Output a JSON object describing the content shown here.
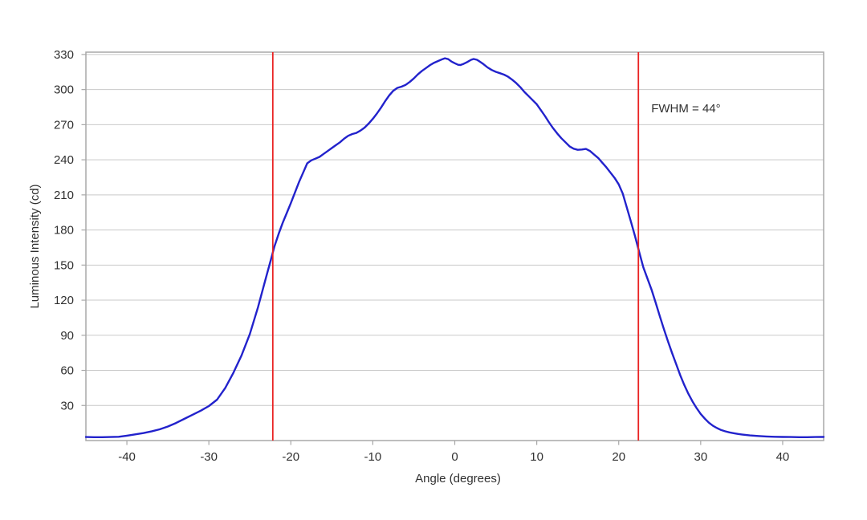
{
  "chart_data": {
    "type": "line",
    "title": "",
    "xlabel": "Angle (degrees)",
    "ylabel": "Luminous Intensity (cd)",
    "xlim": [
      -45,
      45
    ],
    "ylim": [
      0,
      332
    ],
    "x_ticks": [
      -40,
      -30,
      -20,
      -10,
      0,
      10,
      20,
      30,
      40
    ],
    "y_ticks": [
      30,
      60,
      90,
      120,
      150,
      180,
      210,
      240,
      270,
      300,
      330
    ],
    "grid": "horizontal-only",
    "legend": "none",
    "frame": "full-rectangle",
    "grid_color": "#c9c9c9",
    "frame_color": "#a8a8a8",
    "text_color": "#303030",
    "peak_cd": 327,
    "half_max_cd": 163.5,
    "series": [
      {
        "name": "luminous-intensity-vs-angle",
        "color": "#2222cc",
        "points": [
          [
            -45,
            3
          ],
          [
            -44,
            2.9
          ],
          [
            -43,
            2.9
          ],
          [
            -42,
            3
          ],
          [
            -41,
            3.2
          ],
          [
            -40,
            4.2
          ],
          [
            -39,
            5.3
          ],
          [
            -38,
            6.4
          ],
          [
            -37,
            7.8
          ],
          [
            -36,
            9.6
          ],
          [
            -35,
            12
          ],
          [
            -34,
            15
          ],
          [
            -33,
            18.5
          ],
          [
            -32,
            22
          ],
          [
            -31,
            25.5
          ],
          [
            -30,
            29.5
          ],
          [
            -29,
            35
          ],
          [
            -28,
            45
          ],
          [
            -27,
            58
          ],
          [
            -26,
            73
          ],
          [
            -25,
            91
          ],
          [
            -24,
            114
          ],
          [
            -23,
            140
          ],
          [
            -22.5,
            153
          ],
          [
            -22,
            166
          ],
          [
            -21.5,
            176.5
          ],
          [
            -21,
            186
          ],
          [
            -20.5,
            194.5
          ],
          [
            -20,
            203
          ],
          [
            -19.5,
            212
          ],
          [
            -19,
            221
          ],
          [
            -18.5,
            229
          ],
          [
            -18,
            237
          ],
          [
            -17.5,
            239.5
          ],
          [
            -17,
            241
          ],
          [
            -16.5,
            242.5
          ],
          [
            -16,
            245
          ],
          [
            -15.5,
            247.5
          ],
          [
            -15,
            250
          ],
          [
            -14.5,
            252.5
          ],
          [
            -14,
            255
          ],
          [
            -13.5,
            258
          ],
          [
            -13,
            260.5
          ],
          [
            -12.5,
            262
          ],
          [
            -12,
            263
          ],
          [
            -11.5,
            265
          ],
          [
            -11,
            267.5
          ],
          [
            -10.5,
            271
          ],
          [
            -10,
            275
          ],
          [
            -9.5,
            279.5
          ],
          [
            -9,
            284.5
          ],
          [
            -8.5,
            290
          ],
          [
            -8,
            295
          ],
          [
            -7.5,
            299
          ],
          [
            -7,
            301.5
          ],
          [
            -6.5,
            302.5
          ],
          [
            -6,
            304
          ],
          [
            -5.5,
            306.5
          ],
          [
            -5,
            309.5
          ],
          [
            -4.5,
            313
          ],
          [
            -4,
            316
          ],
          [
            -3.5,
            318.5
          ],
          [
            -3,
            321
          ],
          [
            -2.5,
            323
          ],
          [
            -2,
            324.5
          ],
          [
            -1.5,
            326
          ],
          [
            -1.2,
            326.8
          ],
          [
            -0.8,
            326
          ],
          [
            -0.4,
            324
          ],
          [
            0,
            322.5
          ],
          [
            0.4,
            321.2
          ],
          [
            0.7,
            321
          ],
          [
            1,
            321.8
          ],
          [
            1.5,
            323.5
          ],
          [
            2,
            325.5
          ],
          [
            2.3,
            326.2
          ],
          [
            2.7,
            325.5
          ],
          [
            3,
            324.2
          ],
          [
            3.5,
            321.8
          ],
          [
            4,
            319
          ],
          [
            4.5,
            316.8
          ],
          [
            5,
            315.2
          ],
          [
            5.5,
            314
          ],
          [
            6,
            312.8
          ],
          [
            6.5,
            311
          ],
          [
            7,
            308.5
          ],
          [
            7.5,
            305.5
          ],
          [
            8,
            302
          ],
          [
            8.5,
            298
          ],
          [
            9,
            294.5
          ],
          [
            9.5,
            291
          ],
          [
            10,
            287.5
          ],
          [
            10.5,
            282.5
          ],
          [
            11,
            277.5
          ],
          [
            11.5,
            272
          ],
          [
            12,
            267
          ],
          [
            12.5,
            262.5
          ],
          [
            13,
            258.5
          ],
          [
            13.5,
            255
          ],
          [
            14,
            251.5
          ],
          [
            14.5,
            249.5
          ],
          [
            15,
            248.5
          ],
          [
            15.5,
            248.8
          ],
          [
            16,
            249.3
          ],
          [
            16.5,
            247.5
          ],
          [
            17,
            244.5
          ],
          [
            17.5,
            241.5
          ],
          [
            18,
            237.5
          ],
          [
            18.5,
            233.5
          ],
          [
            19,
            229
          ],
          [
            19.5,
            224.5
          ],
          [
            20,
            219
          ],
          [
            20.5,
            211
          ],
          [
            21,
            199
          ],
          [
            21.5,
            187
          ],
          [
            22,
            174.5
          ],
          [
            22.5,
            161
          ],
          [
            23,
            148
          ],
          [
            23.5,
            138.5
          ],
          [
            24,
            129
          ],
          [
            24.5,
            118
          ],
          [
            25,
            106.5
          ],
          [
            25.5,
            95.5
          ],
          [
            26,
            85
          ],
          [
            26.5,
            75
          ],
          [
            27,
            65.5
          ],
          [
            27.5,
            56
          ],
          [
            28,
            47.5
          ],
          [
            28.5,
            40
          ],
          [
            29,
            33.5
          ],
          [
            29.5,
            27.8
          ],
          [
            30,
            22.8
          ],
          [
            30.5,
            18.8
          ],
          [
            31,
            15.3
          ],
          [
            31.5,
            12.6
          ],
          [
            32,
            10.6
          ],
          [
            32.5,
            9
          ],
          [
            33,
            7.9
          ],
          [
            33.5,
            7
          ],
          [
            34,
            6.3
          ],
          [
            34.5,
            5.7
          ],
          [
            35,
            5.2
          ],
          [
            36,
            4.4
          ],
          [
            37,
            3.9
          ],
          [
            38,
            3.5
          ],
          [
            39,
            3.2
          ],
          [
            40,
            3.1
          ],
          [
            41,
            3
          ],
          [
            42,
            2.9
          ],
          [
            43,
            2.9
          ],
          [
            44,
            3
          ],
          [
            45,
            3.1
          ]
        ]
      }
    ],
    "reference_lines": [
      {
        "name": "fwhm-left",
        "x": -22.2,
        "color": "#e92222"
      },
      {
        "name": "fwhm-right",
        "x": 22.4,
        "color": "#e92222"
      }
    ],
    "annotation": {
      "text": "FWHM = 44°",
      "color": "#303030"
    }
  }
}
